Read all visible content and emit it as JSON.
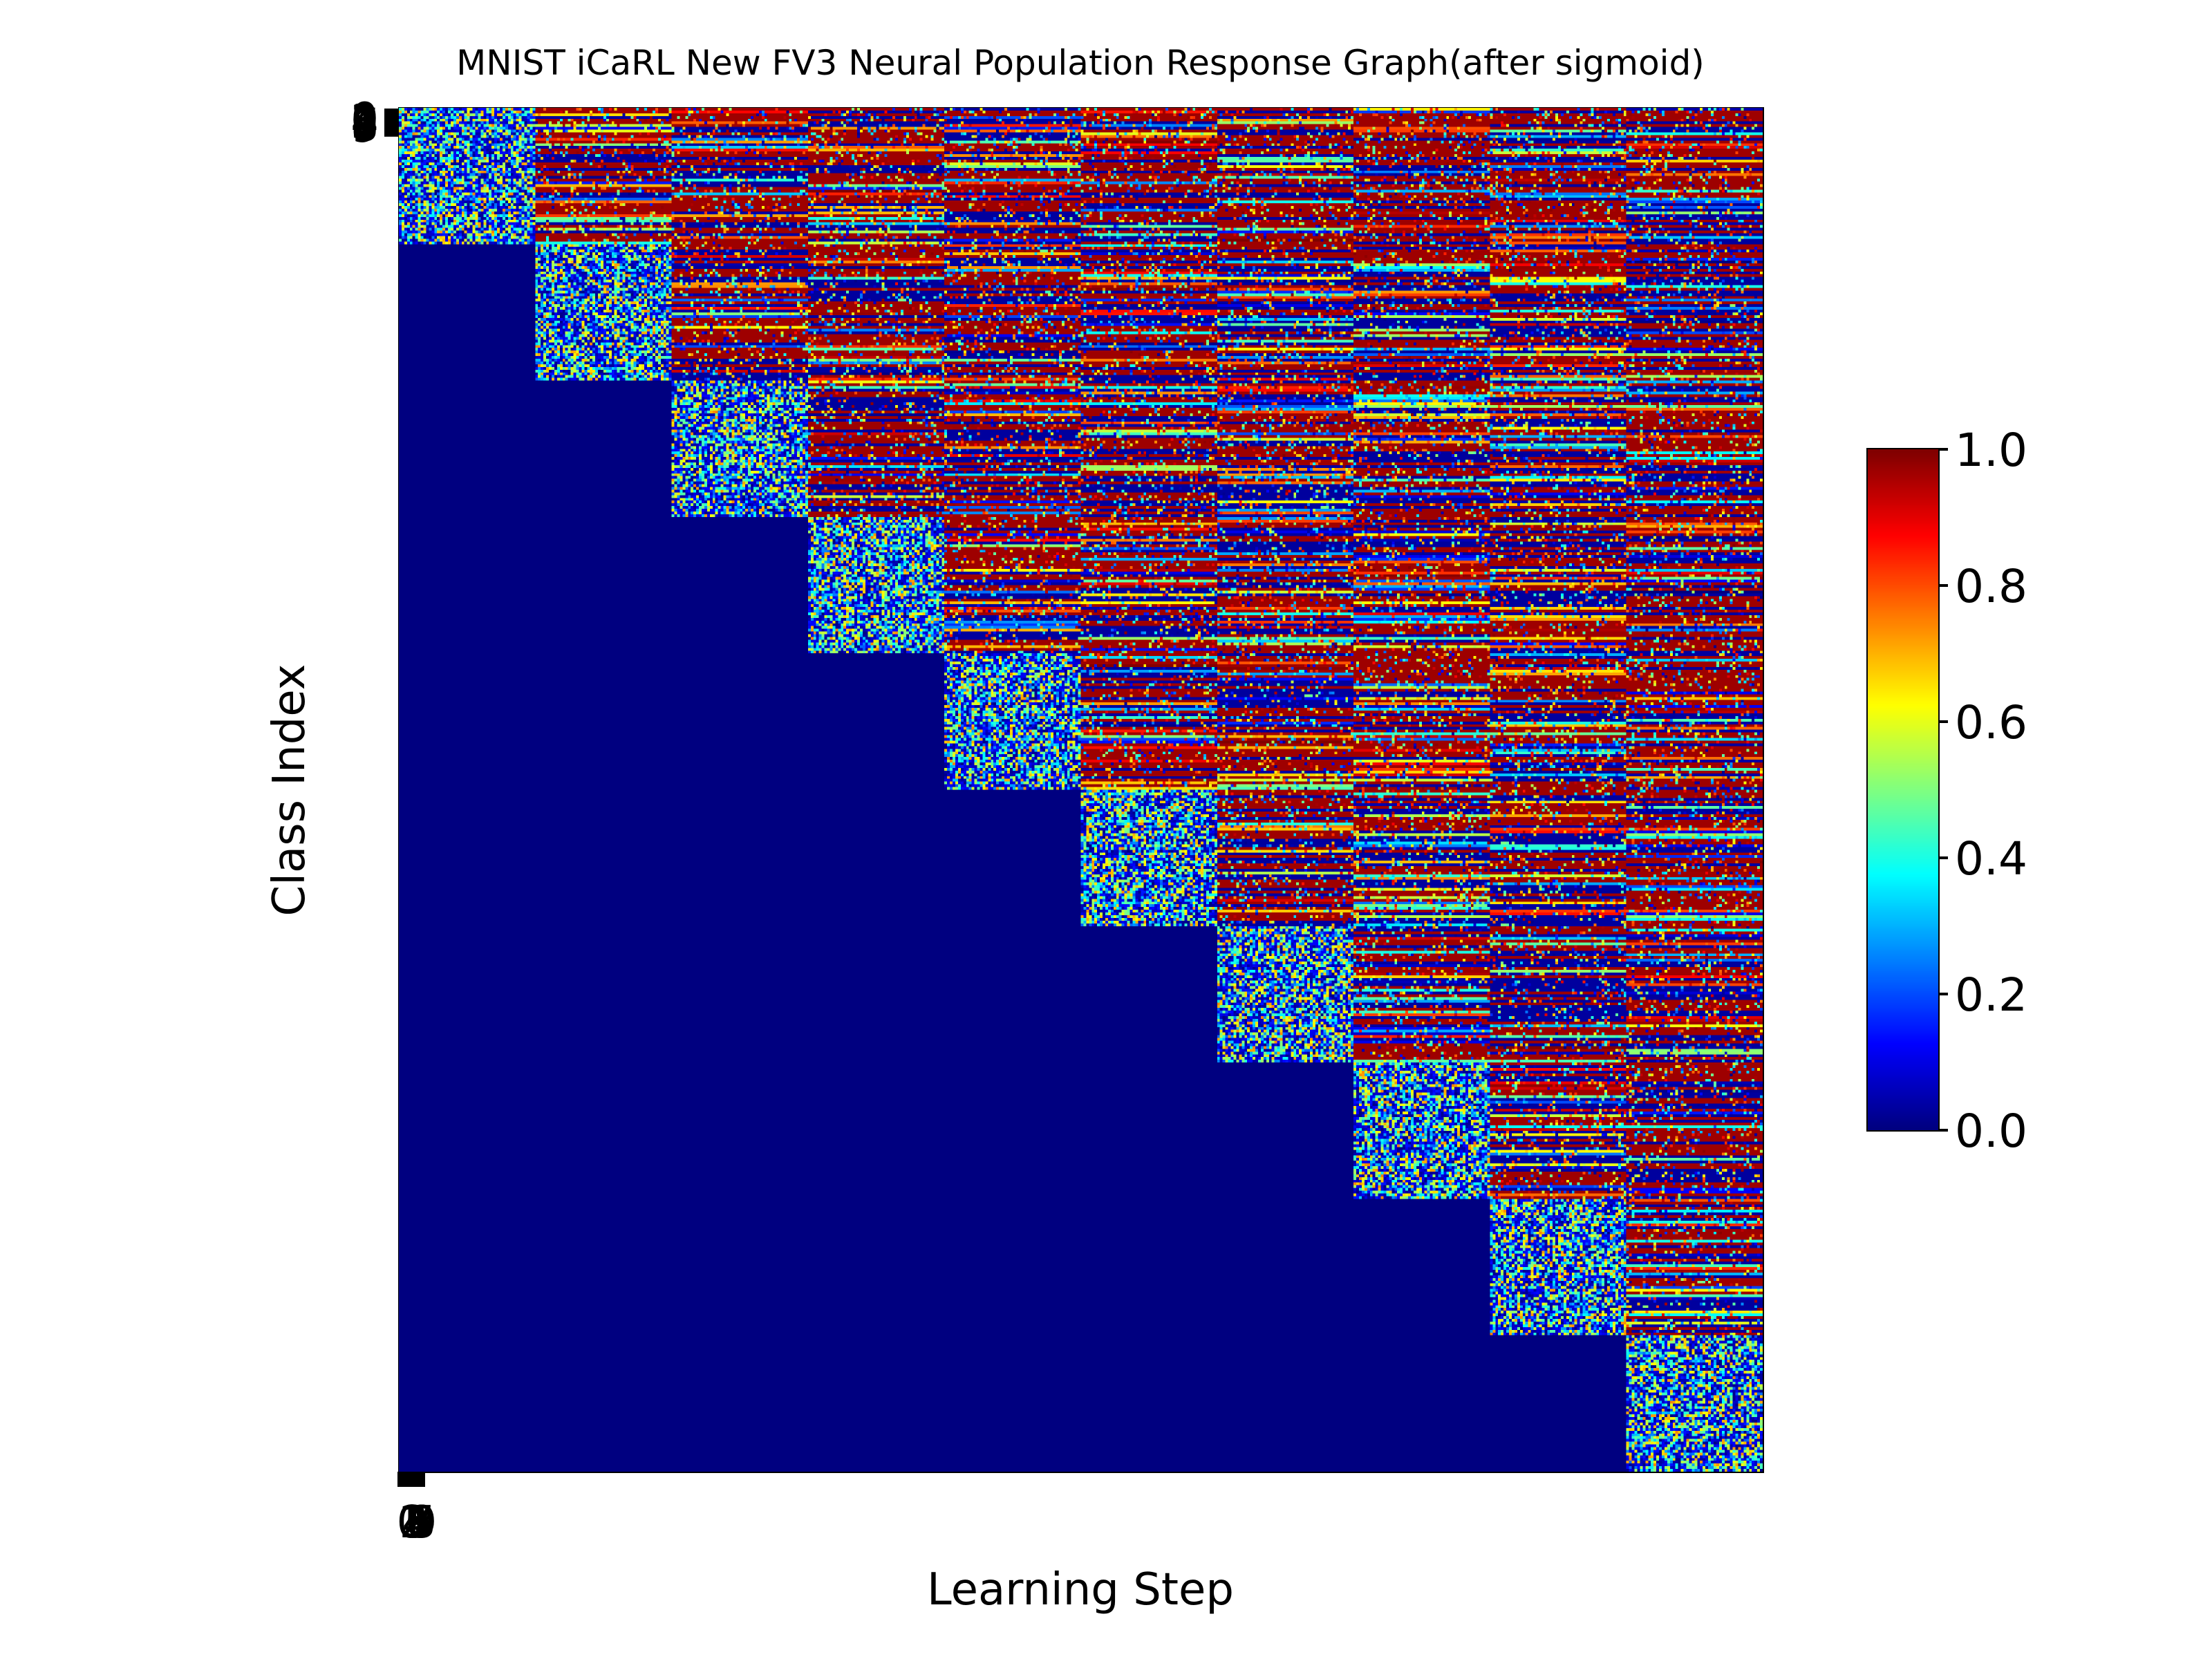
{
  "chart_data": {
    "type": "heatmap",
    "title": "MNIST iCaRL New FV3 Neural Population Response Graph(after sigmoid)",
    "xlabel": "Learning Step",
    "ylabel": "Class Index",
    "x_tick_labels": [
      "0",
      "1",
      "2",
      "3",
      "4",
      "5",
      "6",
      "7",
      "8",
      "9"
    ],
    "y_tick_labels": [
      "0",
      "1",
      "2",
      "3",
      "4",
      "5",
      "6",
      "7",
      "8",
      "9"
    ],
    "grid": false,
    "blocks": 10,
    "rows_per_block": 50,
    "columns_per_step": 50,
    "structure": "block upper-triangular: row block i is 0.0 for learning steps before i; the diagonal block (step i) holds scattered mid-range responses; blocks after the diagonal hold striped responses spanning the full 0-1 range",
    "below_diagonal_value": 0.0,
    "colorbar": {
      "colormap": "jet",
      "range": [
        0.0,
        1.0
      ],
      "ticks": [
        0.0,
        0.2,
        0.4,
        0.6,
        0.8,
        1.0
      ],
      "tick_labels": [
        "0.0",
        "0.2",
        "0.4",
        "0.6",
        "0.8",
        "1.0"
      ]
    }
  }
}
